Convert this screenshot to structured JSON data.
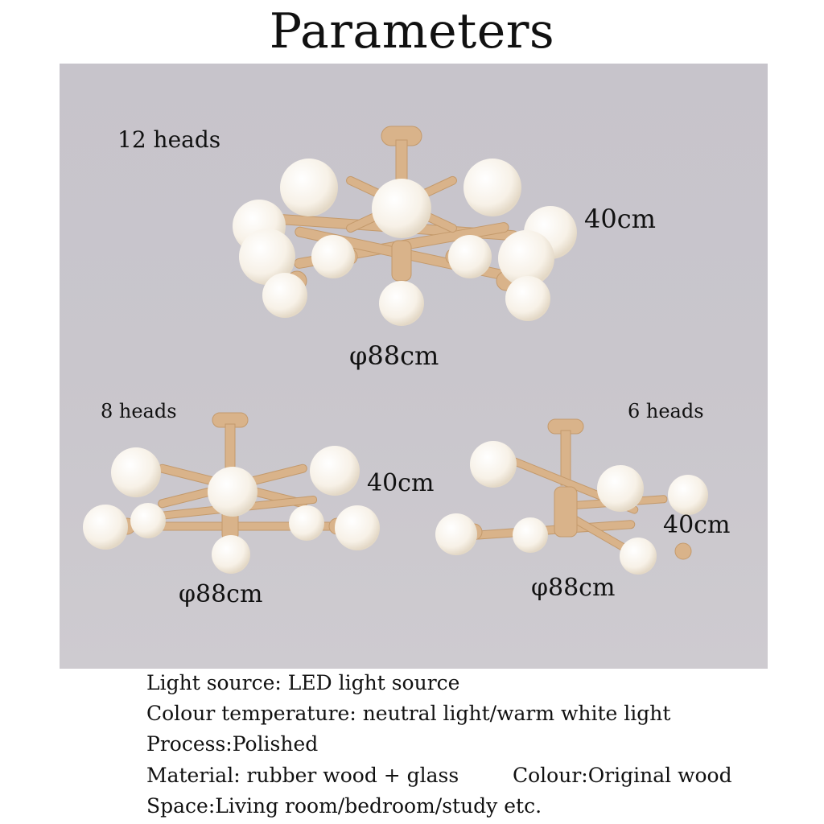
{
  "page": {
    "title": "Parameters"
  },
  "products": [
    {
      "heads_label": "12 heads",
      "height_label": "40cm",
      "diameter_label": "φ88cm"
    },
    {
      "heads_label": "8 heads",
      "height_label": "40cm",
      "diameter_label": "φ88cm"
    },
    {
      "heads_label": "6 heads",
      "height_label": "40cm",
      "diameter_label": "φ88cm"
    }
  ],
  "specs": {
    "light_source": "Light source: LED light source",
    "colour_temperature": "Colour temperature: neutral light/warm white light",
    "process": "Process:Polished",
    "material": "Material: rubber wood + glass",
    "colour": "Colour:Original wood",
    "space": "Space:Living room/bedroom/study etc."
  },
  "colors": {
    "background": "#ffffff",
    "panel": "#c8c5cb",
    "wood": "#d9b38a",
    "glass": "#fbf8f2"
  }
}
